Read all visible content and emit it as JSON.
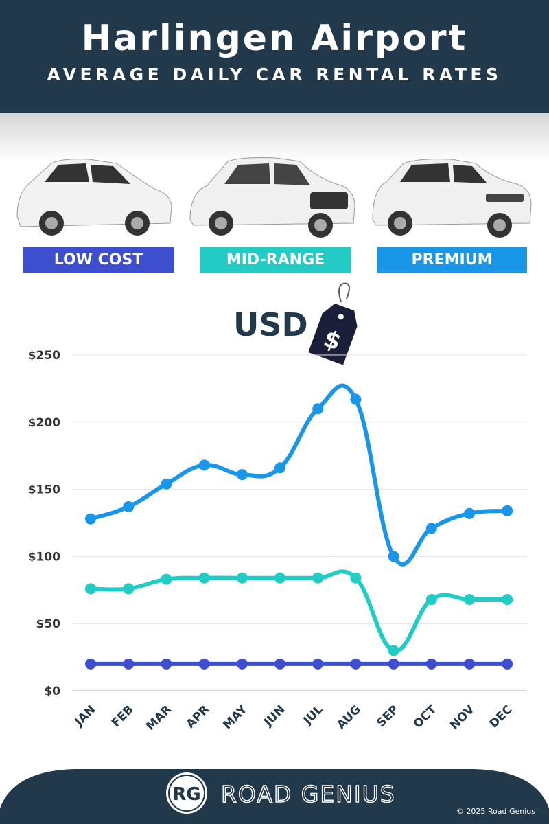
{
  "header": {
    "title": "Harlingen Airport",
    "subtitle": "AVERAGE DAILY CAR RENTAL RATES"
  },
  "categories_legend": [
    {
      "label": "LOW COST",
      "color": "#3d4fcf"
    },
    {
      "label": "MID-RANGE",
      "color": "#22cbc3"
    },
    {
      "label": "PREMIUM",
      "color": "#1a96e8"
    }
  ],
  "currency": {
    "label": "USD",
    "icon": "price-tag-dollar-icon",
    "symbol": "$"
  },
  "chart_data": {
    "type": "line",
    "categories": [
      "JAN",
      "FEB",
      "MAR",
      "APR",
      "MAY",
      "JUN",
      "JUL",
      "AUG",
      "SEP",
      "OCT",
      "NOV",
      "DEC"
    ],
    "series": [
      {
        "name": "PREMIUM",
        "color": "#1a96e8",
        "values": [
          128,
          137,
          154,
          168,
          161,
          166,
          210,
          217,
          100,
          121,
          132,
          134
        ]
      },
      {
        "name": "MID-RANGE",
        "color": "#22cbc3",
        "values": [
          76,
          76,
          83,
          84,
          84,
          84,
          84,
          84,
          30,
          68,
          68,
          68
        ]
      },
      {
        "name": "LOW COST",
        "color": "#3d4fcf",
        "values": [
          20,
          20,
          20,
          20,
          20,
          20,
          20,
          20,
          20,
          20,
          20,
          20
        ]
      }
    ],
    "yticks": [
      "$0",
      "$50",
      "$100",
      "$150",
      "$200",
      "$250"
    ],
    "ytick_values": [
      0,
      50,
      100,
      150,
      200,
      250
    ],
    "ylim": [
      0,
      250
    ],
    "grid": true,
    "smooth": true
  },
  "footer": {
    "brand": "ROAD GENIUS",
    "logo": "RG",
    "copyright": "© 2025 Road Genius"
  }
}
